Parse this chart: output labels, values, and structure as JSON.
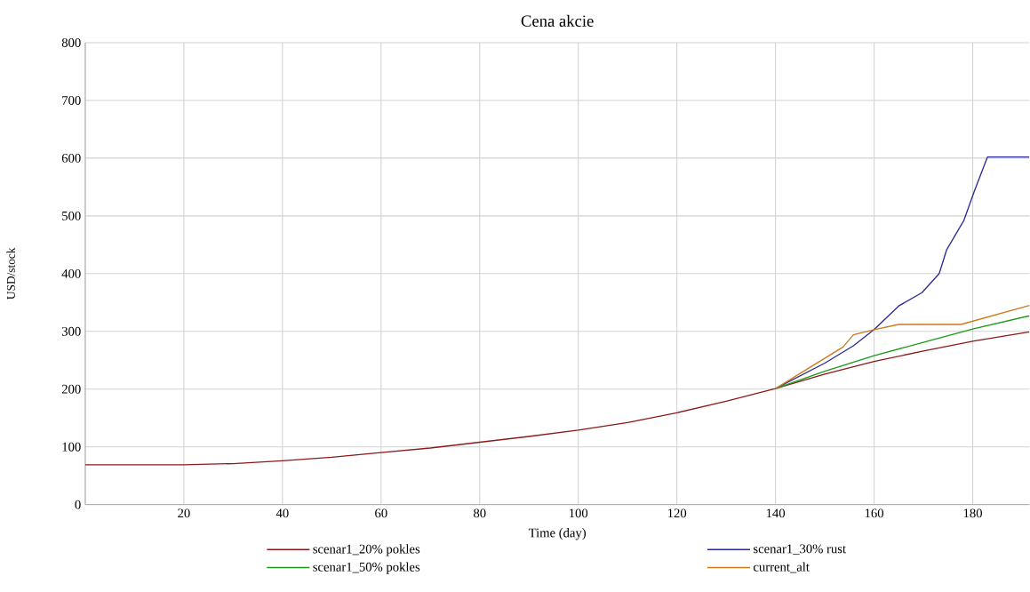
{
  "chart_data": {
    "type": "line",
    "title": "Cena akcie",
    "xlabel": "Time (day)",
    "ylabel": "USD/stock",
    "xlim": [
      0,
      191.5
    ],
    "ylim": [
      0,
      800
    ],
    "xticks": [
      20,
      40,
      60,
      80,
      100,
      120,
      140,
      160,
      180
    ],
    "yticks": [
      0,
      100,
      200,
      300,
      400,
      500,
      600,
      700,
      800
    ],
    "grid": true,
    "legend": "bottom",
    "marker": "none",
    "line_style": "solid",
    "series": [
      {
        "name": "scenar1_20% pokles",
        "color": "#8b1a1a",
        "x": [
          0,
          20,
          30,
          40,
          50,
          60,
          70,
          80,
          90,
          100,
          110,
          120,
          130,
          140,
          150,
          160,
          170,
          180,
          191.5
        ],
        "values": [
          69,
          69,
          71,
          76,
          82,
          90,
          98,
          108,
          118,
          129,
          142,
          159,
          179,
          201,
          226,
          248,
          266,
          283,
          299
        ]
      },
      {
        "name": "scenar1_30% rust",
        "color": "#2a2a9a",
        "x": [
          140,
          150,
          155.8,
          160,
          165,
          169.7,
          173.2,
          174.7,
          178.2,
          180.3,
          183,
          191.5
        ],
        "values": [
          201,
          245,
          275,
          303,
          344,
          367,
          400,
          441,
          492,
          542,
          602,
          602
        ]
      },
      {
        "name": "scenar1_50% pokles",
        "color": "#1a9a1a",
        "x": [
          140,
          150,
          160,
          170,
          180,
          191.5
        ],
        "values": [
          201,
          231,
          258,
          281,
          304,
          327
        ]
      },
      {
        "name": "current_alt",
        "color": "#cc7a1a",
        "x": [
          140,
          153.7,
          155.8,
          160,
          165,
          177.6,
          191.5
        ],
        "values": [
          201,
          273,
          294,
          303,
          312,
          312,
          345
        ]
      }
    ]
  }
}
